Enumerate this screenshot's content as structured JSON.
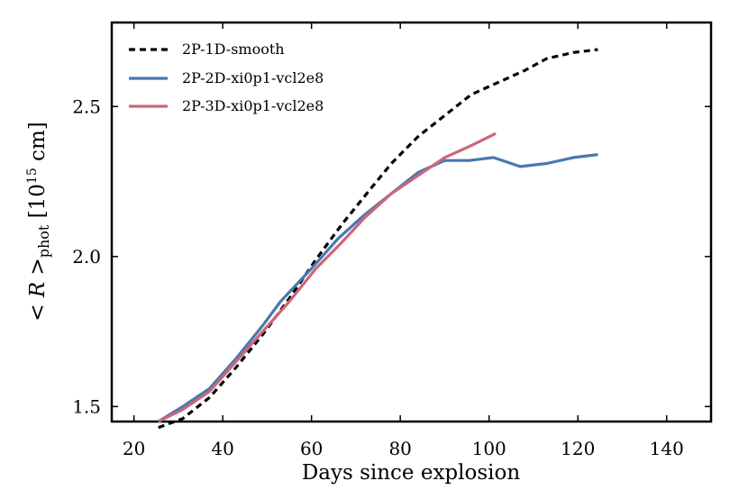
{
  "chart_data": {
    "type": "line",
    "title": "",
    "xlabel": "Days since explosion",
    "ylabel": {
      "prefix": "< R >",
      "subscript": "phot",
      "unit_open": " [10",
      "unit_exp": "15",
      "unit_close": " cm]"
    },
    "xlim": [
      15,
      150
    ],
    "ylim": [
      1.45,
      2.78
    ],
    "xticks": [
      20,
      40,
      60,
      80,
      100,
      120,
      140
    ],
    "yticks": [
      1.5,
      2.0,
      2.5
    ],
    "xtick_labels": [
      "20",
      "40",
      "60",
      "80",
      "100",
      "120",
      "140"
    ],
    "ytick_labels": [
      "1.5",
      "2.0",
      "2.5"
    ],
    "grid": false,
    "legend_position": "top-left",
    "series": [
      {
        "name": "2P-1D-smooth",
        "color": "#000000",
        "style": "dashed",
        "x": [
          25.5,
          31,
          37,
          43,
          49,
          55,
          61,
          67,
          73,
          78,
          84,
          90,
          96,
          102,
          108,
          113,
          119,
          124.5
        ],
        "y": [
          1.43,
          1.46,
          1.53,
          1.63,
          1.74,
          1.86,
          1.99,
          2.11,
          2.22,
          2.31,
          2.4,
          2.47,
          2.54,
          2.58,
          2.62,
          2.66,
          2.68,
          2.69
        ]
      },
      {
        "name": "2P-2D-xi0p1-vcl2e8",
        "color": "#4878af",
        "style": "solid",
        "x": [
          25.5,
          31,
          37,
          43,
          49,
          53,
          60,
          66,
          72,
          78,
          84,
          90,
          95.5,
          101,
          107,
          113,
          119,
          124.5
        ],
        "y": [
          1.45,
          1.5,
          1.56,
          1.66,
          1.77,
          1.85,
          1.96,
          2.06,
          2.14,
          2.21,
          2.28,
          2.32,
          2.32,
          2.33,
          2.3,
          2.31,
          2.33,
          2.34
        ]
      },
      {
        "name": "2P-3D-xi0p1-vcl2e8",
        "color": "#cc6678",
        "style": "solid",
        "x": [
          25.5,
          31,
          37,
          43,
          49,
          55,
          61,
          67,
          72,
          78,
          84,
          90,
          96,
          101.5
        ],
        "y": [
          1.45,
          1.49,
          1.55,
          1.65,
          1.75,
          1.85,
          1.96,
          2.05,
          2.13,
          2.21,
          2.27,
          2.33,
          2.37,
          2.41
        ]
      }
    ]
  }
}
